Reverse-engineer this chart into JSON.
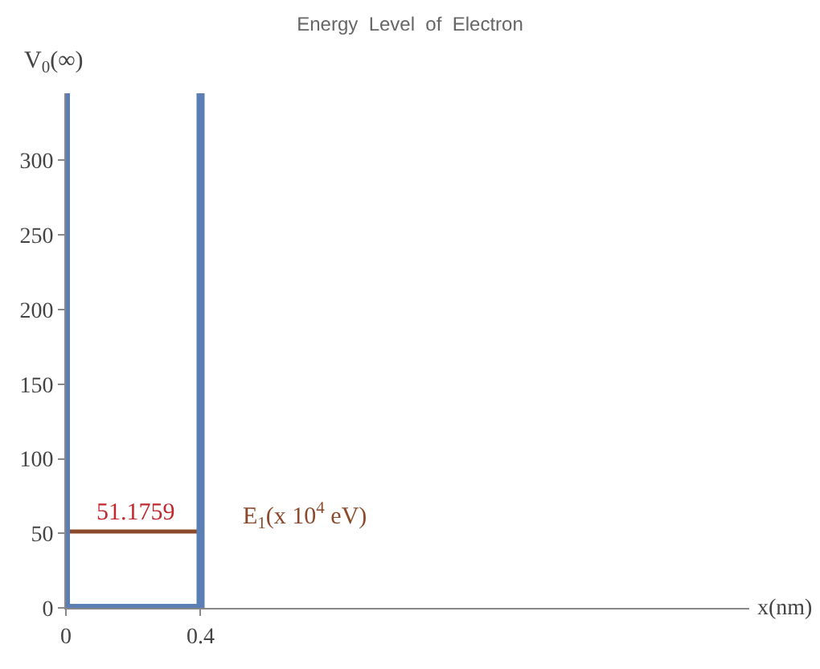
{
  "chart_data": {
    "type": "line",
    "title": "Energy  Level  of  Electron",
    "xlabel": "x(nm)",
    "ylabel": "V$_{0}$(∞)",
    "x": [
      0,
      0.4
    ],
    "series": [
      {
        "values": [
          51.1759,
          51.1759
        ],
        "color": "#8b4a2b",
        "value_labels": [
          "51.1759",
          null
        ]
      },
      {
        "values": [
          0,
          0
        ],
        "color": "#5b7fb5"
      }
    ],
    "ref_lines": [
      {
        "axis": "x",
        "value": 0,
        "color": "#5b7fb5"
      },
      {
        "axis": "x",
        "value": 0.4,
        "color": "#5b7fb5"
      }
    ],
    "annotations": [
      "E$_{1}$(x 10$^{4}$ eV)"
    ],
    "xlim": [
      0,
      2.03
    ],
    "xticks": [
      0,
      0.4
    ],
    "ylim": [
      0,
      345
    ],
    "yticks": [
      0,
      50,
      100,
      150,
      200,
      250,
      300
    ],
    "marker": "none",
    "line_style": "solid"
  }
}
